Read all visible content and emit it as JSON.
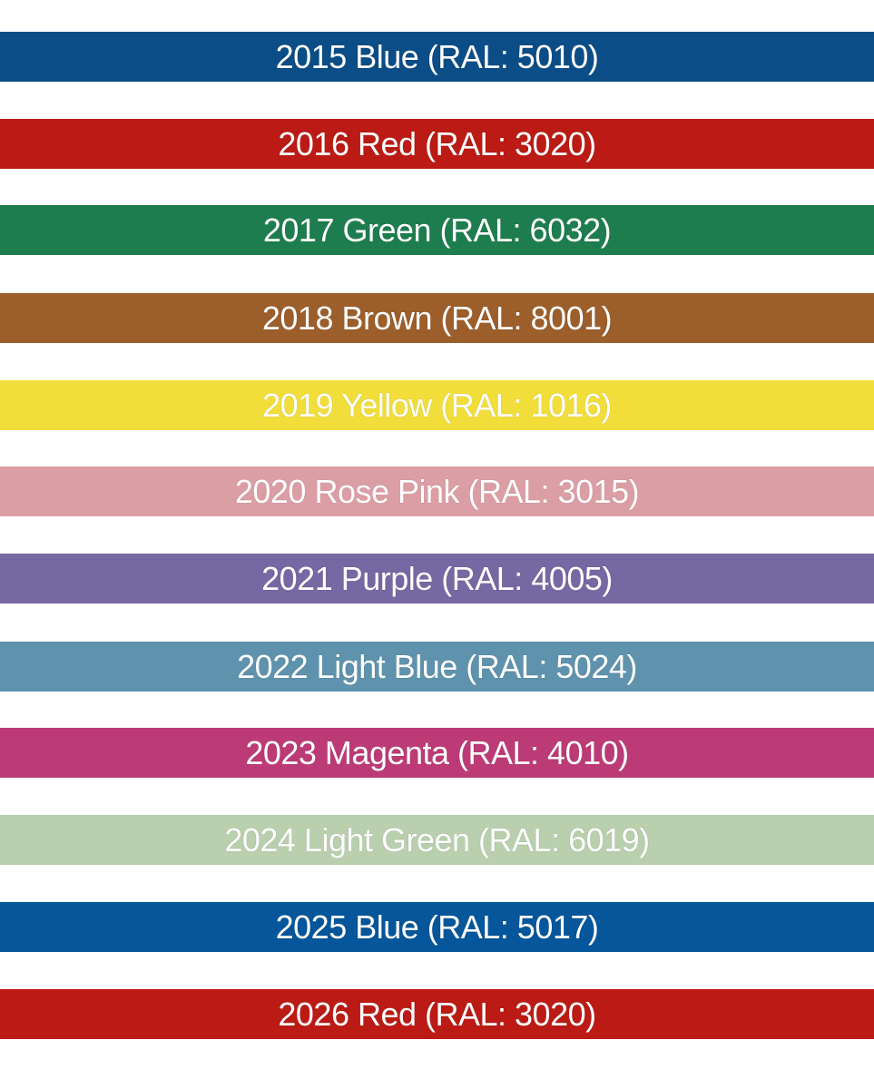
{
  "bands": [
    {
      "label": "2015 Blue (RAL: 5010)",
      "color": "#0b4d86"
    },
    {
      "label": "2016 Red (RAL: 3020)",
      "color": "#bb1b14"
    },
    {
      "label": "2017 Green (RAL: 6032)",
      "color": "#1e7d4e"
    },
    {
      "label": "2018 Brown (RAL: 8001)",
      "color": "#9c5e2b"
    },
    {
      "label": "2019 Yellow (RAL: 1016)",
      "color": "#f2de3a"
    },
    {
      "label": "2020 Rose Pink (RAL: 3015)",
      "color": "#dc9ea5"
    },
    {
      "label": "2021 Purple (RAL: 4005)",
      "color": "#7668a2"
    },
    {
      "label": "2022 Light Blue (RAL: 5024)",
      "color": "#5f93ad"
    },
    {
      "label": "2023 Magenta (RAL: 4010)",
      "color": "#bc3b77"
    },
    {
      "label": "2024 Light Green (RAL: 6019)",
      "color": "#bacfae"
    },
    {
      "label": "2025 Blue (RAL: 5017)",
      "color": "#05569a"
    },
    {
      "label": "2026 Red (RAL: 3020)",
      "color": "#bb1b14"
    }
  ]
}
